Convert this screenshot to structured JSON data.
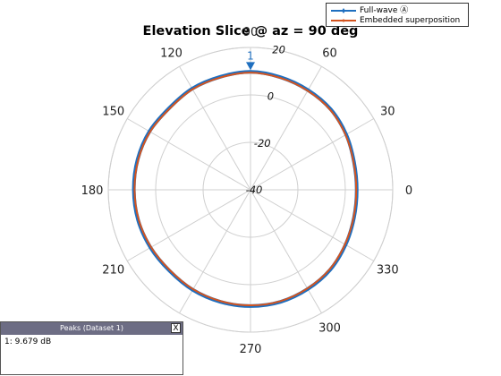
{
  "chart_data": {
    "type": "polar",
    "title": "Elevation Slice @ az = 90 deg",
    "angle_ticks": [
      "0",
      "30",
      "60",
      "90",
      "120",
      "150",
      "180",
      "210",
      "240",
      "270",
      "300",
      "330"
    ],
    "radial_ticks": [
      "-40",
      "-20",
      "0",
      "20"
    ],
    "rlim": [
      -40,
      20
    ],
    "angle_unit": "deg",
    "grid": true,
    "legend_position": "top-right",
    "peak_marker": {
      "label": "1",
      "angle": 90,
      "value": 9.679
    },
    "series": [
      {
        "name": "Full-wave Ⓐ",
        "color": "#1f6fbf",
        "angles": [
          0,
          15,
          30,
          45,
          60,
          75,
          90,
          105,
          120,
          135,
          150,
          165,
          180,
          195,
          210,
          225,
          240,
          255,
          270,
          285,
          300,
          315,
          330,
          345
        ],
        "values": [
          4.8,
          5.2,
          6.6,
          7.9,
          8.5,
          9.1,
          9.7,
          9.3,
          9.2,
          8.6,
          9.2,
          9.3,
          9.2,
          9.1,
          8.7,
          8.3,
          8.7,
          8.9,
          9.0,
          8.9,
          8.3,
          7.6,
          6.3,
          5.2
        ]
      },
      {
        "name": "Embedded superposition",
        "color": "#d4541f",
        "angles": [
          0,
          15,
          30,
          45,
          60,
          75,
          90,
          105,
          120,
          135,
          150,
          165,
          180,
          195,
          210,
          225,
          240,
          255,
          270,
          285,
          300,
          315,
          330,
          345
        ],
        "values": [
          4.6,
          5.0,
          6.3,
          7.6,
          8.2,
          8.8,
          9.4,
          9.0,
          8.9,
          8.3,
          8.9,
          9.0,
          8.9,
          8.8,
          8.4,
          8.0,
          8.4,
          8.6,
          8.7,
          8.6,
          8.0,
          7.3,
          6.0,
          5.0
        ]
      }
    ]
  },
  "peaks_panel": {
    "title": "Peaks (Dataset 1)",
    "close_label": "X",
    "entry": "1: 9.679 dB"
  }
}
